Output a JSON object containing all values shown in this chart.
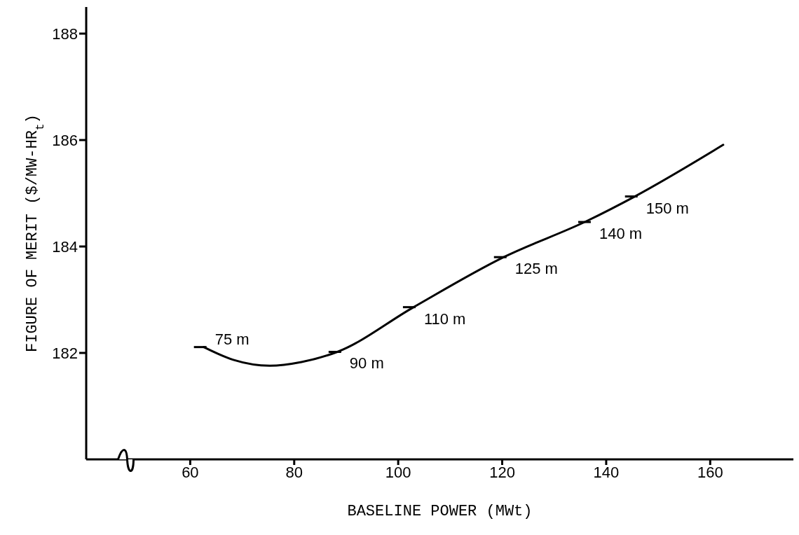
{
  "chart_data": {
    "type": "line",
    "xlabel": "BASELINE POWER (MWt)",
    "ylabel": "FIGURE OF MERIT ($/MW-HR$_{t}$)",
    "x": [
      62.6,
      68.3,
      75.3,
      81.4,
      88.3,
      102.8,
      120.3,
      136.3,
      145.5,
      162.5
    ],
    "series": [
      {
        "color": "#000000",
        "values": [
          182.11,
          181.87,
          181.76,
          181.83,
          182.02,
          182.85,
          183.8,
          184.48,
          184.94,
          185.91
        ]
      }
    ],
    "xlim": [
      40,
      176
    ],
    "xticks": [
      60,
      80,
      100,
      120,
      140,
      160
    ],
    "ylim": [
      180,
      188.5
    ],
    "yticks": [
      182,
      184,
      186,
      188
    ],
    "grid": false,
    "legend": false,
    "marker": "none",
    "line_style": "solid",
    "annotations": [
      {
        "text": "75 m",
        "x": 62.6,
        "y": 182.11
      },
      {
        "text": "90 m",
        "x": 88.5,
        "y": 182.02
      },
      {
        "text": "110 m",
        "x": 102.8,
        "y": 182.86
      },
      {
        "text": "125 m",
        "x": 120.3,
        "y": 183.8
      },
      {
        "text": "140 m",
        "x": 136.5,
        "y": 184.46
      },
      {
        "text": "150 m",
        "x": 145.5,
        "y": 184.94
      }
    ]
  }
}
